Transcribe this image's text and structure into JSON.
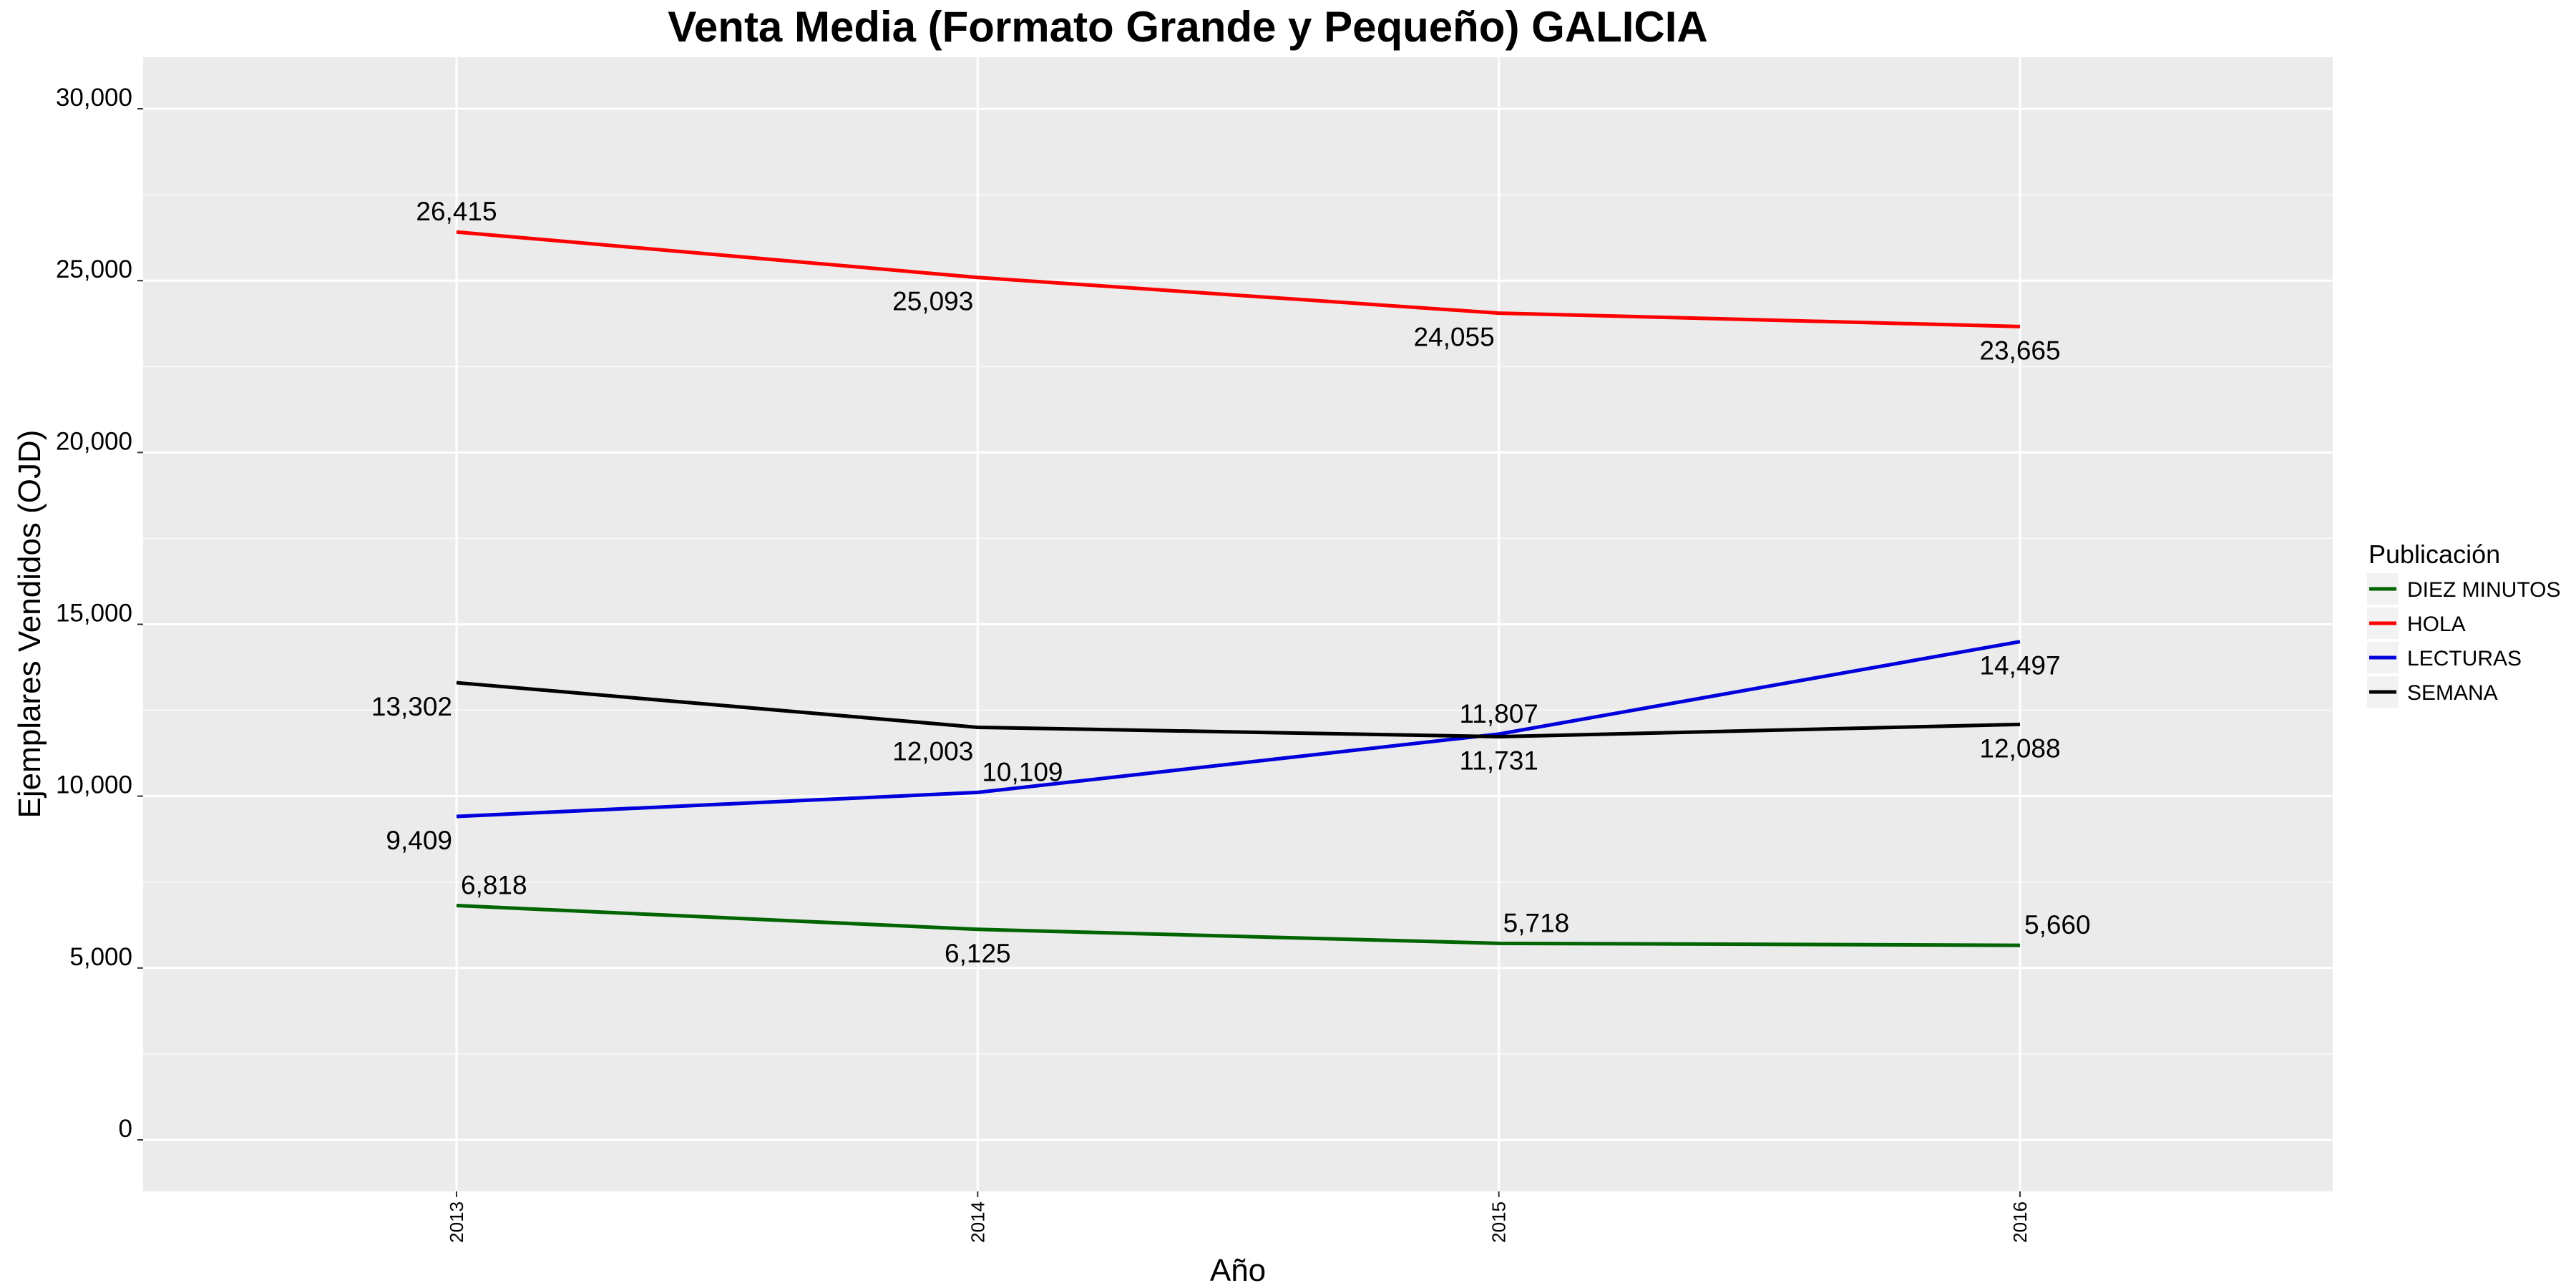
{
  "chart_data": {
    "type": "line",
    "title": "Venta Media (Formato Grande y Pequeño)  GALICIA",
    "xlabel": "Año",
    "ylabel": "Ejemplares Vendidos (OJD)",
    "categories": [
      "2013",
      "2014",
      "2015",
      "2016"
    ],
    "ylim": [
      -1500,
      31500
    ],
    "yticks": [
      0,
      5000,
      10000,
      15000,
      20000,
      25000,
      30000
    ],
    "ytick_labels": [
      "0",
      "5,000",
      "10,000",
      "15,000",
      "20,000",
      "25,000",
      "30,000"
    ],
    "grid": true,
    "legend": {
      "title": "Publicación",
      "placement": "right"
    },
    "series": [
      {
        "name": "DIEZ MINUTOS",
        "color": "#006400",
        "values": [
          6818,
          6125,
          5718,
          5660
        ],
        "labels": [
          "6,818",
          "6,125",
          "5,718",
          "5,660"
        ],
        "label_positions": [
          "above-right",
          "below",
          "above-right",
          "above-right"
        ]
      },
      {
        "name": "HOLA",
        "color": "#ff0000",
        "values": [
          26415,
          25093,
          24055,
          23665
        ],
        "labels": [
          "26,415",
          "25,093",
          "24,055",
          "23,665"
        ],
        "label_positions": [
          "above",
          "below-left",
          "below-left",
          "below"
        ]
      },
      {
        "name": "LECTURAS",
        "color": "#0000dd",
        "values": [
          9409,
          10109,
          11807,
          14497
        ],
        "labels": [
          "9,409",
          "10,109",
          "11,807",
          "14,497"
        ],
        "label_positions": [
          "below-left",
          "above-right",
          "above",
          "below"
        ]
      },
      {
        "name": "SEMANA",
        "color": "#000000",
        "values": [
          13302,
          12003,
          11731,
          12088
        ],
        "labels": [
          "13,302",
          "12,003",
          "11,731",
          "12,088"
        ],
        "label_positions": [
          "below-left",
          "below-left",
          "below",
          "below"
        ]
      }
    ]
  }
}
